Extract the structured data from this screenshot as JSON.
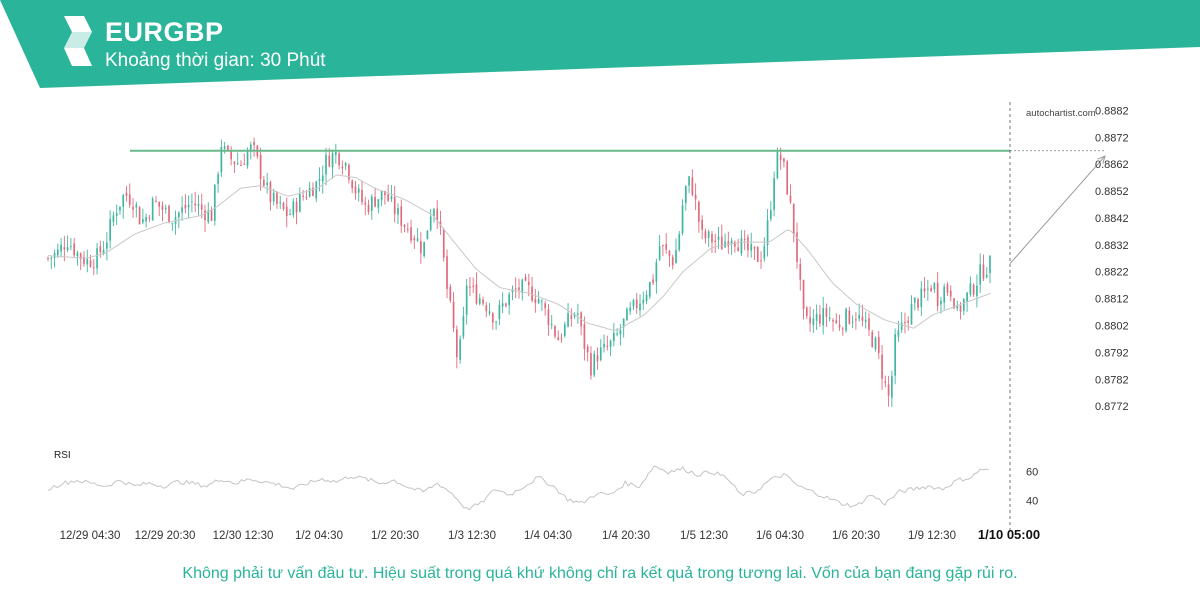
{
  "header": {
    "symbol": "EURGBP",
    "interval_text": "Khoảng thời gian: 30 Phút",
    "brand_color": "#2ab49a"
  },
  "watermark": "autochartist.com",
  "footer": {
    "disclaimer": "Không phải tư vấn đầu tư. Hiệu suất trong quá khứ không chỉ ra kết quả trong tương lai. Vốn của bạn đang gặp rủi ro."
  },
  "chart_data": {
    "type": "candlestick",
    "symbol": "EURGBP",
    "x_tick_labels": [
      "12/29 04:30",
      "12/29 20:30",
      "12/30 12:30",
      "1/2 04:30",
      "1/2 20:30",
      "1/3 12:30",
      "1/4 04:30",
      "1/4 20:30",
      "1/5 12:30",
      "1/6 04:30",
      "1/6 20:30",
      "1/9 12:30",
      "1/10 05:00"
    ],
    "y_tick_labels": [
      "0.8882",
      "0.8872",
      "0.8862",
      "0.8852",
      "0.8842",
      "0.8832",
      "0.8822",
      "0.8812",
      "0.8802",
      "0.8792",
      "0.8782",
      "0.8772"
    ],
    "ylim": [
      0.8765,
      0.8884
    ],
    "resistance_level": 0.8867,
    "forecast": {
      "from_price": 0.8825,
      "to_price": 0.8865
    },
    "close_path": [
      [
        0,
        0.8827
      ],
      [
        10,
        0.8829
      ],
      [
        20,
        0.8834
      ],
      [
        30,
        0.8829
      ],
      [
        40,
        0.8826
      ],
      [
        50,
        0.8827
      ],
      [
        60,
        0.8833
      ],
      [
        70,
        0.8845
      ],
      [
        80,
        0.8851
      ],
      [
        90,
        0.8848
      ],
      [
        95,
        0.8842
      ],
      [
        100,
        0.8841
      ],
      [
        110,
        0.8848
      ],
      [
        120,
        0.8845
      ],
      [
        130,
        0.8842
      ],
      [
        140,
        0.8845
      ],
      [
        150,
        0.8848
      ],
      [
        160,
        0.8845
      ],
      [
        170,
        0.8843
      ],
      [
        175,
        0.8855
      ],
      [
        180,
        0.887
      ],
      [
        185,
        0.8865
      ],
      [
        190,
        0.8864
      ],
      [
        200,
        0.8862
      ],
      [
        210,
        0.8868
      ],
      [
        215,
        0.8866
      ],
      [
        220,
        0.886
      ],
      [
        230,
        0.885
      ],
      [
        240,
        0.8846
      ],
      [
        250,
        0.8843
      ],
      [
        260,
        0.8848
      ],
      [
        270,
        0.8852
      ],
      [
        280,
        0.8855
      ],
      [
        290,
        0.8864
      ],
      [
        300,
        0.8866
      ],
      [
        310,
        0.8862
      ],
      [
        320,
        0.8852
      ],
      [
        330,
        0.8846
      ],
      [
        340,
        0.8849
      ],
      [
        350,
        0.8851
      ],
      [
        360,
        0.8845
      ],
      [
        370,
        0.884
      ],
      [
        380,
        0.8836
      ],
      [
        390,
        0.883
      ],
      [
        395,
        0.884
      ],
      [
        400,
        0.8848
      ],
      [
        405,
        0.8844
      ],
      [
        410,
        0.883
      ],
      [
        415,
        0.8815
      ],
      [
        420,
        0.8804
      ],
      [
        425,
        0.8791
      ],
      [
        430,
        0.8795
      ],
      [
        435,
        0.8818
      ],
      [
        440,
        0.8815
      ],
      [
        450,
        0.8812
      ],
      [
        460,
        0.8808
      ],
      [
        465,
        0.8804
      ],
      [
        470,
        0.8808
      ],
      [
        480,
        0.8813
      ],
      [
        490,
        0.8816
      ],
      [
        500,
        0.8815
      ],
      [
        510,
        0.8812
      ],
      [
        520,
        0.8805
      ],
      [
        530,
        0.8797
      ],
      [
        540,
        0.8803
      ],
      [
        550,
        0.8808
      ],
      [
        555,
        0.8798
      ],
      [
        560,
        0.8792
      ],
      [
        565,
        0.8786
      ],
      [
        570,
        0.8791
      ],
      [
        580,
        0.8793
      ],
      [
        590,
        0.8797
      ],
      [
        600,
        0.8804
      ],
      [
        610,
        0.8809
      ],
      [
        620,
        0.8814
      ],
      [
        630,
        0.882
      ],
      [
        635,
        0.8832
      ],
      [
        640,
        0.883
      ],
      [
        650,
        0.8826
      ],
      [
        655,
        0.8833
      ],
      [
        660,
        0.8848
      ],
      [
        665,
        0.8856
      ],
      [
        670,
        0.8853
      ],
      [
        675,
        0.8844
      ],
      [
        680,
        0.8835
      ],
      [
        690,
        0.8834
      ],
      [
        700,
        0.8832
      ],
      [
        710,
        0.8836
      ],
      [
        720,
        0.8832
      ],
      [
        730,
        0.8829
      ],
      [
        740,
        0.8827
      ],
      [
        745,
        0.8833
      ],
      [
        750,
        0.8843
      ],
      [
        755,
        0.886
      ],
      [
        760,
        0.8866
      ],
      [
        765,
        0.886
      ],
      [
        770,
        0.885
      ],
      [
        775,
        0.8838
      ],
      [
        780,
        0.8823
      ],
      [
        785,
        0.8805
      ],
      [
        790,
        0.8802
      ],
      [
        800,
        0.8805
      ],
      [
        810,
        0.8806
      ],
      [
        820,
        0.8802
      ],
      [
        830,
        0.8805
      ],
      [
        840,
        0.8806
      ],
      [
        850,
        0.8801
      ],
      [
        860,
        0.8795
      ],
      [
        865,
        0.8788
      ],
      [
        870,
        0.878
      ],
      [
        875,
        0.8774
      ],
      [
        880,
        0.8795
      ],
      [
        890,
        0.8803
      ],
      [
        900,
        0.881
      ],
      [
        910,
        0.8813
      ],
      [
        920,
        0.8818
      ],
      [
        925,
        0.8812
      ],
      [
        930,
        0.8816
      ],
      [
        940,
        0.8815
      ],
      [
        945,
        0.8806
      ],
      [
        950,
        0.881
      ],
      [
        960,
        0.8815
      ],
      [
        970,
        0.8822
      ],
      [
        980,
        0.8825
      ]
    ],
    "ma_path": [
      [
        0,
        0.8828
      ],
      [
        40,
        0.8827
      ],
      [
        60,
        0.8829
      ],
      [
        90,
        0.8836
      ],
      [
        120,
        0.884
      ],
      [
        160,
        0.8843
      ],
      [
        175,
        0.8846
      ],
      [
        200,
        0.8853
      ],
      [
        220,
        0.8854
      ],
      [
        250,
        0.885
      ],
      [
        280,
        0.8853
      ],
      [
        300,
        0.8858
      ],
      [
        320,
        0.8857
      ],
      [
        340,
        0.8853
      ],
      [
        370,
        0.8849
      ],
      [
        400,
        0.8843
      ],
      [
        420,
        0.8834
      ],
      [
        445,
        0.8823
      ],
      [
        470,
        0.8816
      ],
      [
        500,
        0.8814
      ],
      [
        530,
        0.881
      ],
      [
        560,
        0.8803
      ],
      [
        590,
        0.88
      ],
      [
        620,
        0.8806
      ],
      [
        640,
        0.8813
      ],
      [
        660,
        0.8822
      ],
      [
        690,
        0.8831
      ],
      [
        720,
        0.8833
      ],
      [
        750,
        0.8833
      ],
      [
        770,
        0.8838
      ],
      [
        790,
        0.883
      ],
      [
        815,
        0.8818
      ],
      [
        840,
        0.881
      ],
      [
        870,
        0.8804
      ],
      [
        900,
        0.8801
      ],
      [
        920,
        0.8806
      ],
      [
        950,
        0.881
      ],
      [
        980,
        0.8814
      ]
    ],
    "rsi": {
      "label": "RSI",
      "y_tick_labels": [
        "60",
        "40"
      ],
      "ylim": [
        30,
        75
      ],
      "path": [
        [
          0,
          48
        ],
        [
          15,
          52
        ],
        [
          30,
          54
        ],
        [
          45,
          52
        ],
        [
          60,
          50
        ],
        [
          75,
          54
        ],
        [
          90,
          50
        ],
        [
          105,
          52
        ],
        [
          120,
          50
        ],
        [
          135,
          53
        ],
        [
          150,
          52
        ],
        [
          165,
          50
        ],
        [
          180,
          55
        ],
        [
          195,
          52
        ],
        [
          210,
          55
        ],
        [
          225,
          53
        ],
        [
          240,
          51
        ],
        [
          255,
          48
        ],
        [
          270,
          52
        ],
        [
          285,
          55
        ],
        [
          300,
          53
        ],
        [
          315,
          57
        ],
        [
          330,
          55
        ],
        [
          345,
          52
        ],
        [
          360,
          54
        ],
        [
          375,
          49
        ],
        [
          390,
          46
        ],
        [
          405,
          52
        ],
        [
          420,
          45
        ],
        [
          435,
          34
        ],
        [
          450,
          38
        ],
        [
          465,
          48
        ],
        [
          480,
          44
        ],
        [
          495,
          50
        ],
        [
          510,
          56
        ],
        [
          525,
          50
        ],
        [
          540,
          41
        ],
        [
          555,
          38
        ],
        [
          570,
          45
        ],
        [
          585,
          44
        ],
        [
          600,
          52
        ],
        [
          615,
          50
        ],
        [
          630,
          64
        ],
        [
          645,
          60
        ],
        [
          660,
          62
        ],
        [
          675,
          58
        ],
        [
          690,
          60
        ],
        [
          705,
          56
        ],
        [
          720,
          44
        ],
        [
          735,
          46
        ],
        [
          750,
          54
        ],
        [
          765,
          58
        ],
        [
          780,
          50
        ],
        [
          795,
          46
        ],
        [
          810,
          42
        ],
        [
          825,
          38
        ],
        [
          840,
          36
        ],
        [
          855,
          44
        ],
        [
          870,
          38
        ],
        [
          885,
          46
        ],
        [
          900,
          48
        ],
        [
          915,
          50
        ],
        [
          930,
          48
        ],
        [
          945,
          54
        ],
        [
          960,
          56
        ],
        [
          970,
          62
        ],
        [
          980,
          60
        ]
      ]
    }
  }
}
